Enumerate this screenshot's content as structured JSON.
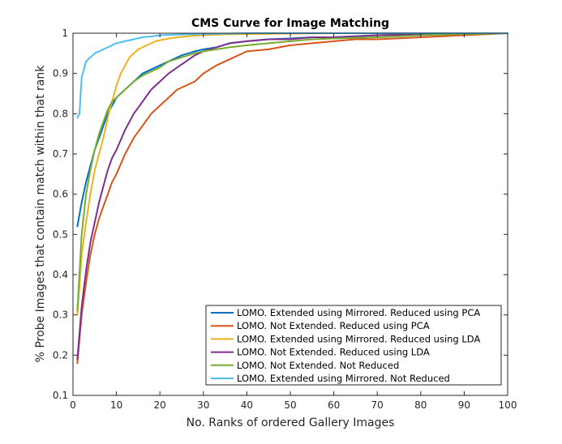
{
  "chart_data": {
    "type": "line",
    "title": "CMS Curve for Image Matching",
    "xlabel": "No. Ranks of ordered Gallery Images",
    "ylabel": "% Probe Images that contain match within that rank",
    "xlim": [
      0,
      100
    ],
    "ylim": [
      0.1,
      1
    ],
    "x_ticks": [
      "0",
      "10",
      "20",
      "30",
      "40",
      "50",
      "60",
      "70",
      "80",
      "90",
      "100"
    ],
    "y_ticks": [
      "0.1",
      "0.2",
      "0.3",
      "0.4",
      "0.5",
      "0.6",
      "0.7",
      "0.8",
      "0.9",
      "1"
    ],
    "grid": false,
    "legend_position": "bottom-right",
    "series": [
      {
        "name": "LOMO. Extended using Mirrored. Reduced using PCA",
        "color": "#0072BD",
        "x": [
          1,
          2,
          3,
          4,
          5,
          6,
          7,
          8,
          9,
          10,
          12,
          14,
          16,
          18,
          20,
          22,
          25,
          28,
          30,
          33,
          36,
          40,
          45,
          50,
          55,
          60,
          70,
          80,
          90,
          100
        ],
        "y": [
          0.52,
          0.58,
          0.63,
          0.67,
          0.71,
          0.74,
          0.77,
          0.8,
          0.82,
          0.84,
          0.86,
          0.88,
          0.9,
          0.91,
          0.92,
          0.93,
          0.945,
          0.955,
          0.96,
          0.965,
          0.975,
          0.98,
          0.985,
          0.987,
          0.99,
          0.99,
          0.995,
          0.997,
          0.998,
          1
        ]
      },
      {
        "name": "LOMO. Not Extended. Reduced using PCA",
        "color": "#D95319",
        "x": [
          1,
          2,
          3,
          4,
          5,
          6,
          7,
          8,
          9,
          10,
          12,
          14,
          16,
          18,
          20,
          22,
          24,
          26,
          28,
          30,
          33,
          36,
          40,
          45,
          50,
          55,
          60,
          65,
          70,
          80,
          90,
          100
        ],
        "y": [
          0.18,
          0.3,
          0.38,
          0.45,
          0.5,
          0.54,
          0.57,
          0.6,
          0.63,
          0.65,
          0.7,
          0.74,
          0.77,
          0.8,
          0.82,
          0.84,
          0.86,
          0.87,
          0.88,
          0.9,
          0.92,
          0.935,
          0.955,
          0.96,
          0.97,
          0.975,
          0.98,
          0.985,
          0.985,
          0.99,
          0.995,
          1
        ]
      },
      {
        "name": "LOMO. Extended using Mirrored. Reduced using LDA",
        "color": "#EDB120",
        "x": [
          1,
          2,
          3,
          4,
          5,
          6,
          7,
          8,
          9,
          10,
          11,
          12,
          13,
          14,
          15,
          17,
          19,
          21,
          24,
          27,
          30,
          35,
          40,
          50,
          60,
          80,
          100
        ],
        "y": [
          0.3,
          0.45,
          0.53,
          0.6,
          0.66,
          0.7,
          0.74,
          0.79,
          0.83,
          0.87,
          0.9,
          0.92,
          0.94,
          0.95,
          0.96,
          0.97,
          0.98,
          0.985,
          0.99,
          0.993,
          0.995,
          0.997,
          0.998,
          0.999,
          1,
          1,
          1
        ]
      },
      {
        "name": "LOMO. Not Extended. Reduced using LDA",
        "color": "#7E2F8E",
        "x": [
          1,
          2,
          3,
          4,
          5,
          6,
          7,
          8,
          9,
          10,
          12,
          14,
          16,
          18,
          20,
          22,
          24,
          26,
          28,
          30,
          33,
          36,
          40,
          45,
          50,
          55,
          60,
          70,
          80,
          90,
          100
        ],
        "y": [
          0.19,
          0.32,
          0.41,
          0.48,
          0.53,
          0.58,
          0.62,
          0.66,
          0.69,
          0.71,
          0.76,
          0.8,
          0.83,
          0.86,
          0.88,
          0.9,
          0.915,
          0.93,
          0.945,
          0.955,
          0.965,
          0.975,
          0.98,
          0.985,
          0.985,
          0.99,
          0.99,
          0.995,
          0.997,
          0.999,
          1
        ]
      },
      {
        "name": "LOMO. Not Extended. Not Reduced",
        "color": "#77AC30",
        "x": [
          1,
          2,
          3,
          4,
          5,
          6,
          7,
          8,
          9,
          10,
          12,
          14,
          16,
          18,
          20,
          22,
          25,
          28,
          30,
          33,
          36,
          40,
          45,
          50,
          55,
          60,
          70,
          80,
          90,
          100
        ],
        "y": [
          0.31,
          0.5,
          0.6,
          0.66,
          0.71,
          0.75,
          0.78,
          0.81,
          0.83,
          0.84,
          0.86,
          0.88,
          0.895,
          0.905,
          0.915,
          0.93,
          0.94,
          0.95,
          0.955,
          0.96,
          0.965,
          0.97,
          0.975,
          0.98,
          0.985,
          0.987,
          0.99,
          0.995,
          0.998,
          1
        ]
      },
      {
        "name": "LOMO. Extended using Mirrored. Not Reduced",
        "color": "#4DBEEE",
        "x": [
          1,
          1.5,
          2,
          3,
          4,
          5,
          6,
          7,
          8,
          9,
          10,
          12,
          14,
          16,
          18,
          20,
          25,
          30,
          35,
          40,
          50,
          60,
          80,
          100
        ],
        "y": [
          0.79,
          0.8,
          0.89,
          0.93,
          0.94,
          0.95,
          0.955,
          0.96,
          0.965,
          0.97,
          0.975,
          0.98,
          0.985,
          0.99,
          0.992,
          0.995,
          0.997,
          0.998,
          0.999,
          1,
          1,
          1,
          1,
          1
        ]
      }
    ]
  }
}
